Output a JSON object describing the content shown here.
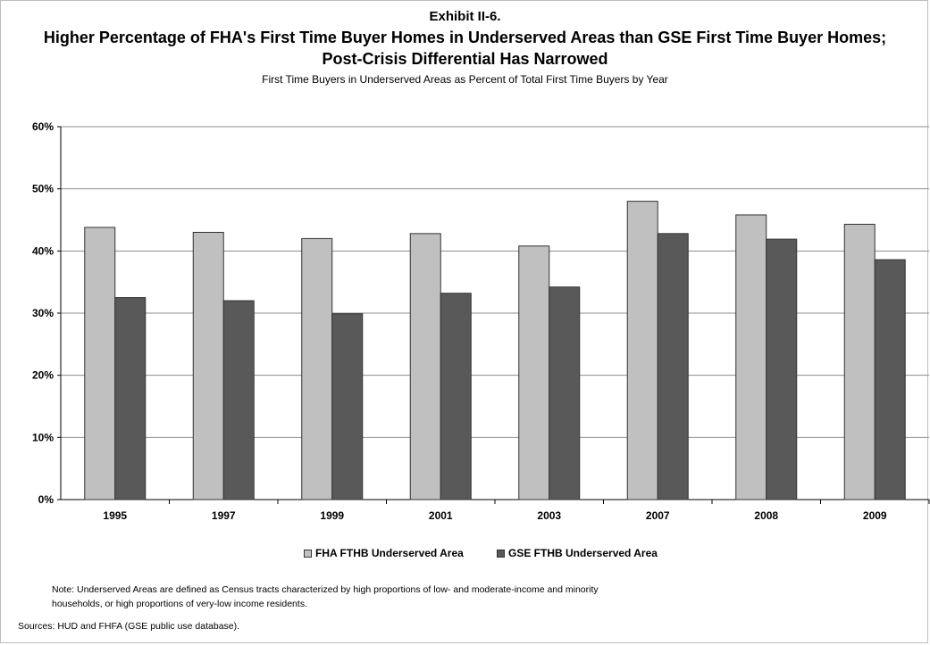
{
  "header": {
    "exhibit": "Exhibit II-6.",
    "title_line1": "Higher Percentage of FHA's First Time Buyer Homes in Underserved Areas than GSE First Time Buyer Homes;",
    "title_line2": "Post-Crisis Differential Has Narrowed",
    "subtitle": "First Time Buyers in Underserved Areas as Percent of Total First Time Buyers by Year"
  },
  "chart_data": {
    "type": "bar",
    "title": "Higher Percentage of FHA's First Time Buyer Homes in Underserved Areas than GSE First Time Buyer Homes; Post-Crisis Differential Has Narrowed",
    "subtitle": "First Time Buyers in Underserved Areas as Percent of Total First Time Buyers by Year",
    "xlabel": "",
    "ylabel": "",
    "categories": [
      "1995",
      "1997",
      "1999",
      "2001",
      "2003",
      "2007",
      "2008",
      "2009"
    ],
    "series": [
      {
        "name": "FHA FTHB Underserved Area",
        "color": "#c0c0c0",
        "values": [
          43.8,
          43.0,
          42.0,
          42.8,
          40.8,
          48.0,
          45.8,
          44.3
        ]
      },
      {
        "name": "GSE FTHB Underserved Area",
        "color": "#595959",
        "values": [
          32.5,
          32.0,
          29.9,
          33.2,
          34.2,
          42.8,
          41.9,
          38.6
        ]
      }
    ],
    "ylim": [
      0,
      60
    ],
    "yticks": [
      0,
      10,
      20,
      30,
      40,
      50,
      60
    ],
    "ytick_labels": [
      "0%",
      "10%",
      "20%",
      "30%",
      "40%",
      "50%",
      "60%"
    ],
    "grid": true,
    "legend": "bottom"
  },
  "footer": {
    "note_line1": "Note:  Underserved Areas are defined as Census tracts characterized by high proportions of low- and moderate-income  and minority",
    "note_line2": "households, or high proportions of very-low income residents.",
    "sources": "Sources:  HUD and FHFA (GSE public use database)."
  }
}
